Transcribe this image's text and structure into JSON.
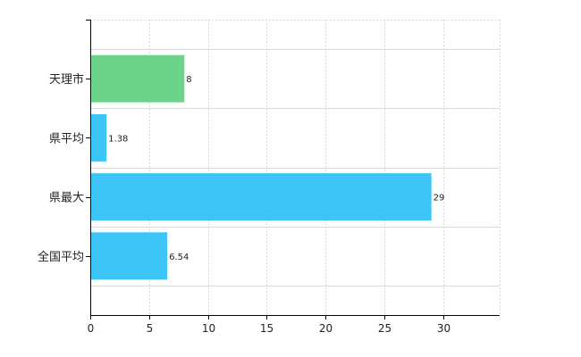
{
  "chart_data": {
    "type": "bar",
    "orientation": "horizontal",
    "categories": [
      "天理市",
      "県平均",
      "県最大",
      "全国平均"
    ],
    "values": [
      8,
      1.38,
      29,
      6.54
    ],
    "value_labels": [
      "8",
      "1.38",
      "29",
      "6.54"
    ],
    "bar_colors": [
      "#6dd38a",
      "#3ec5f7",
      "#3ec5f7",
      "#3ec5f7"
    ],
    "xlim": [
      0,
      34.8
    ],
    "x_ticks": [
      0,
      5,
      10,
      15,
      20,
      25,
      30
    ],
    "grid": true,
    "title": "",
    "xlabel": "",
    "ylabel": ""
  }
}
